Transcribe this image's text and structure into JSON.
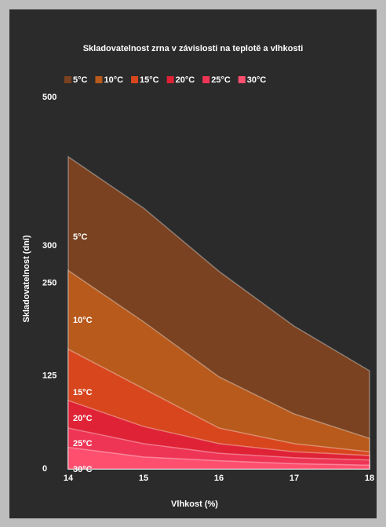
{
  "chart_data": {
    "type": "area",
    "title": "Skladovatelnost zrna v závislosti na teplotě a vlhkosti",
    "x_label": "Vlhkost (%)",
    "y_label": "Skladovatelnost (dní)",
    "x": [
      14,
      15,
      16,
      17,
      18
    ],
    "xlim": [
      14,
      18
    ],
    "xticks": [
      14,
      15,
      16,
      17,
      18
    ],
    "ylim": [
      0,
      500
    ],
    "yticks": [
      0,
      125,
      250,
      300,
      500
    ],
    "legend": "top",
    "series": [
      {
        "name": "5°C",
        "color": "#7a4220",
        "values": [
          420,
          351,
          266,
          192,
          132
        ]
      },
      {
        "name": "10°C",
        "color": "#b85a1c",
        "values": [
          267,
          198,
          124,
          74,
          41
        ]
      },
      {
        "name": "15°C",
        "color": "#d8461e",
        "values": [
          161,
          108,
          55,
          34,
          23
        ]
      },
      {
        "name": "20°C",
        "color": "#df2236",
        "values": [
          92,
          57,
          34,
          23,
          18
        ]
      },
      {
        "name": "25°C",
        "color": "#ee3556",
        "values": [
          55,
          34,
          21,
          15,
          12
        ]
      },
      {
        "name": "30°C",
        "color": "#ff4f6e",
        "values": [
          29,
          16,
          11,
          7,
          5
        ]
      }
    ]
  }
}
